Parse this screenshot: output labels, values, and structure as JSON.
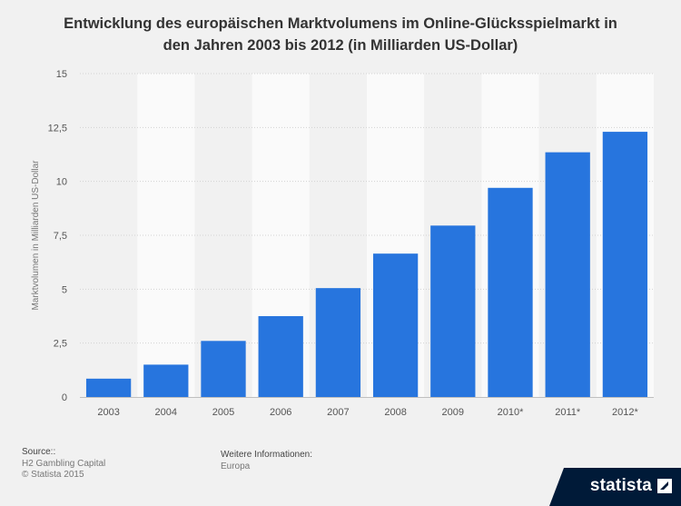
{
  "title_lines": [
    "Entwicklung des europäischen Marktvolumens im Online-Glücksspielmarkt in",
    "den Jahren 2003 bis 2012 (in Milliarden US-Dollar)"
  ],
  "chart_data": {
    "type": "bar",
    "categories": [
      "2003",
      "2004",
      "2005",
      "2006",
      "2007",
      "2008",
      "2009",
      "2010*",
      "2011*",
      "2012*"
    ],
    "values": [
      0.85,
      1.5,
      2.6,
      3.75,
      5.05,
      6.65,
      7.95,
      9.7,
      11.35,
      12.3
    ],
    "ylabel": "Marktvolumen in Milliarden US-Dollar",
    "xlabel": "",
    "ylim": [
      0,
      15
    ],
    "yticks": [
      "0",
      "2,5",
      "5",
      "7,5",
      "10",
      "12,5",
      "15"
    ],
    "grid": true,
    "bar_color": "#2775de"
  },
  "footer": {
    "source_label": "Source::",
    "source_lines": [
      "H2 Gambling Capital",
      "© Statista 2015"
    ],
    "info_label": "Weitere Informationen:",
    "info_value": "Europa"
  },
  "brand": {
    "name": "statista",
    "icon": "statista-logo-icon"
  }
}
